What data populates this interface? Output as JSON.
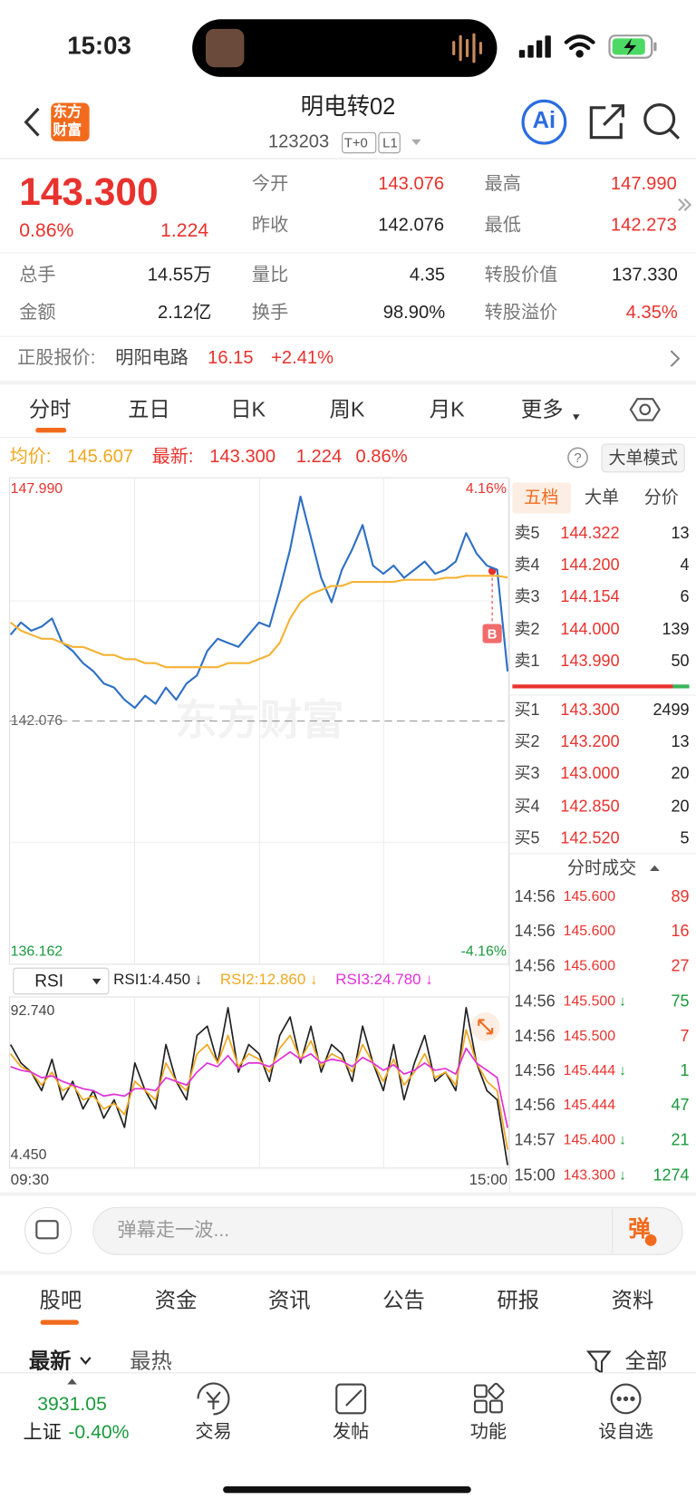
{
  "status_bar": {
    "time": "15:03"
  },
  "header": {
    "logo": [
      "东方",
      "财富"
    ],
    "title": "明电转02",
    "code": "123203",
    "tags": [
      "T+0",
      "L1"
    ],
    "ai": "Ai"
  },
  "quote": {
    "price": "143.300",
    "change_pct": "0.86%",
    "change": "1.224",
    "open": {
      "label": "今开",
      "value": "143.076"
    },
    "prev_close": {
      "label": "昨收",
      "value": "142.076"
    },
    "high": {
      "label": "最高",
      "value": "147.990"
    },
    "low": {
      "label": "最低",
      "value": "142.273"
    },
    "volume": {
      "label": "总手",
      "value": "14.55万"
    },
    "amount": {
      "label": "金额",
      "value": "2.12亿"
    },
    "volume_ratio": {
      "label": "量比",
      "value": "4.35"
    },
    "turnover": {
      "label": "换手",
      "value": "98.90%"
    },
    "conversion_value": {
      "label": "转股价值",
      "value": "137.330"
    },
    "conversion_premium": {
      "label": "转股溢价",
      "value": "4.35%"
    }
  },
  "underlying": {
    "label": "正股报价:",
    "name": "明阳电路",
    "price": "16.15",
    "change_pct": "+2.41%"
  },
  "chart_tabs": [
    "分时",
    "五日",
    "日K",
    "周K",
    "月K",
    "更多"
  ],
  "chart_legend": {
    "avg_label": "均价:",
    "avg": "145.607",
    "latest_label": "最新:",
    "latest": "143.300",
    "change": "1.224",
    "change_pct": "0.86%",
    "help": "?",
    "mode_button": "大单模式"
  },
  "chart_data": [
    {
      "type": "line",
      "watermark": "东方财富",
      "annotation": "B",
      "categories": [
        null,
        null,
        null,
        null,
        null,
        null,
        null,
        null,
        null,
        null,
        null,
        null,
        null,
        null,
        null,
        null,
        null,
        null,
        null,
        null,
        null,
        null,
        null,
        null,
        null,
        null,
        null,
        null,
        null,
        null,
        null,
        null,
        null,
        null,
        null,
        null,
        null,
        null,
        null,
        null,
        null,
        null,
        null,
        null,
        null,
        null,
        null,
        null,
        null
      ],
      "series": [
        {
          "color": "#2e6fc4",
          "values": [
            144.2,
            144.5,
            144.3,
            144.4,
            144.6,
            144.0,
            143.8,
            143.5,
            143.3,
            143.0,
            142.9,
            142.6,
            142.4,
            142.7,
            142.5,
            142.9,
            142.6,
            143.0,
            143.2,
            143.8,
            144.1,
            144.0,
            143.9,
            144.2,
            144.5,
            144.4,
            145.3,
            146.3,
            147.6,
            146.6,
            145.6,
            145.0,
            145.8,
            146.3,
            146.9,
            145.9,
            145.7,
            145.9,
            145.6,
            145.8,
            146.0,
            145.7,
            145.8,
            146.0,
            146.7,
            146.2,
            145.9,
            145.8,
            143.3
          ]
        },
        {
          "color": "#f5b335",
          "values": [
            144.5,
            144.3,
            144.2,
            144.1,
            144.1,
            144.0,
            143.9,
            143.9,
            143.8,
            143.7,
            143.7,
            143.6,
            143.6,
            143.5,
            143.5,
            143.4,
            143.4,
            143.4,
            143.4,
            143.4,
            143.4,
            143.5,
            143.5,
            143.5,
            143.6,
            143.7,
            144.0,
            144.6,
            145.0,
            145.2,
            145.3,
            145.4,
            145.4,
            145.5,
            145.5,
            145.5,
            145.5,
            145.5,
            145.55,
            145.55,
            145.55,
            145.55,
            145.6,
            145.6,
            145.65,
            145.65,
            145.65,
            145.65,
            145.607
          ]
        }
      ],
      "ylim": [
        136.162,
        147.99
      ],
      "yticks": [
        {
          "value": 147.99,
          "label": "147.990"
        },
        {
          "value": 142.076,
          "label": "142.076"
        },
        {
          "value": 136.162,
          "label": "136.162"
        }
      ],
      "y2lim": [
        -4.16,
        4.16
      ],
      "y2ticks": [
        {
          "value": 4.16,
          "label": "4.16%"
        },
        {
          "value": -4.16,
          "label": "-4.16%"
        }
      ]
    },
    {
      "type": "line",
      "indicator": "RSI",
      "categories": [
        "09:30",
        null,
        null,
        null,
        null,
        null,
        null,
        null,
        null,
        null,
        null,
        null,
        null,
        null,
        null,
        null,
        null,
        null,
        null,
        null,
        null,
        null,
        null,
        null,
        null,
        null,
        null,
        null,
        null,
        null,
        null,
        null,
        null,
        null,
        null,
        null,
        null,
        null,
        null,
        null,
        null,
        null,
        null,
        null,
        null,
        null,
        null,
        null,
        "15:00"
      ],
      "series": [
        {
          "name": "RSI1:4.450 ↓",
          "color": "#222222",
          "values": [
            70,
            60,
            55,
            45,
            62,
            40,
            50,
            35,
            45,
            30,
            40,
            25,
            60,
            45,
            35,
            70,
            50,
            40,
            75,
            80,
            60,
            90,
            55,
            70,
            65,
            50,
            75,
            85,
            60,
            80,
            55,
            70,
            65,
            50,
            80,
            60,
            45,
            70,
            40,
            60,
            75,
            50,
            55,
            45,
            90,
            60,
            45,
            40,
            4.45
          ]
        },
        {
          "name": "RSI2:12.860 ↓",
          "color": "#f0a820",
          "values": [
            65,
            58,
            55,
            48,
            55,
            45,
            48,
            40,
            42,
            35,
            38,
            32,
            50,
            45,
            40,
            60,
            50,
            45,
            65,
            70,
            60,
            75,
            58,
            65,
            62,
            55,
            68,
            75,
            62,
            72,
            58,
            65,
            62,
            55,
            70,
            60,
            50,
            62,
            48,
            55,
            65,
            52,
            55,
            48,
            78,
            60,
            50,
            45,
            12.86
          ]
        },
        {
          "name": "RSI3:24.780 ↓",
          "color": "#e030d8",
          "values": [
            58,
            56,
            55,
            52,
            53,
            50,
            48,
            46,
            45,
            42,
            43,
            42,
            46,
            46,
            45,
            52,
            50,
            48,
            55,
            60,
            58,
            64,
            57,
            60,
            60,
            58,
            62,
            66,
            62,
            65,
            60,
            62,
            61,
            58,
            63,
            60,
            56,
            59,
            54,
            56,
            60,
            56,
            57,
            54,
            68,
            60,
            56,
            52,
            24.78
          ]
        }
      ],
      "ylim": [
        4.45,
        92.74
      ],
      "yticks": [
        {
          "value": 92.74,
          "label": "92.740"
        },
        {
          "value": 4.45,
          "label": "4.450"
        }
      ]
    }
  ],
  "order_book": {
    "tabs": [
      "五档",
      "大单",
      "分价"
    ],
    "asks": [
      {
        "label": "卖5",
        "price": "144.322",
        "volume": "13"
      },
      {
        "label": "卖4",
        "price": "144.200",
        "volume": "4"
      },
      {
        "label": "卖3",
        "price": "144.154",
        "volume": "6"
      },
      {
        "label": "卖2",
        "price": "144.000",
        "volume": "139"
      },
      {
        "label": "卖1",
        "price": "143.990",
        "volume": "50"
      }
    ],
    "bids": [
      {
        "label": "买1",
        "price": "143.300",
        "volume": "2499"
      },
      {
        "label": "买2",
        "price": "143.200",
        "volume": "13"
      },
      {
        "label": "买3",
        "price": "143.000",
        "volume": "20"
      },
      {
        "label": "买4",
        "price": "142.850",
        "volume": "20"
      },
      {
        "label": "买5",
        "price": "142.520",
        "volume": "5"
      }
    ]
  },
  "trades": {
    "title": "分时成交",
    "rows": [
      {
        "time": "14:56",
        "price": "145.600",
        "volume": "89",
        "color": "#e8322d"
      },
      {
        "time": "14:56",
        "price": "145.600",
        "volume": "16",
        "color": "#e8322d"
      },
      {
        "time": "14:56",
        "price": "145.600",
        "volume": "27",
        "color": "#e8322d"
      },
      {
        "time": "14:56",
        "price": "145.500",
        "arrow": "↓",
        "volume": "75",
        "color": "#1a9a3c"
      },
      {
        "time": "14:56",
        "price": "145.500",
        "volume": "7",
        "color": "#e8322d"
      },
      {
        "time": "14:56",
        "price": "145.444",
        "arrow": "↓",
        "volume": "1",
        "color": "#1a9a3c"
      },
      {
        "time": "14:56",
        "price": "145.444",
        "volume": "47",
        "color": "#1a9a3c"
      },
      {
        "time": "14:57",
        "price": "145.400",
        "arrow": "↓",
        "volume": "21",
        "color": "#1a9a3c"
      },
      {
        "time": "15:00",
        "price": "143.300",
        "arrow": "↓",
        "volume": "1274",
        "color": "#1a9a3c"
      }
    ]
  },
  "comment_box": {
    "placeholder": "弹幕走一波...",
    "button": "弹"
  },
  "community_tabs": [
    "股吧",
    "资金",
    "资讯",
    "公告",
    "研报",
    "资料"
  ],
  "feed_filters": {
    "sort": [
      "最新",
      "最热"
    ],
    "filter": "全部"
  },
  "bottom_nav": {
    "index_value": "3931.05",
    "index_name": "上证",
    "index_change": "-0.40%",
    "items": [
      "交易",
      "发帖",
      "功能",
      "设自选"
    ]
  }
}
